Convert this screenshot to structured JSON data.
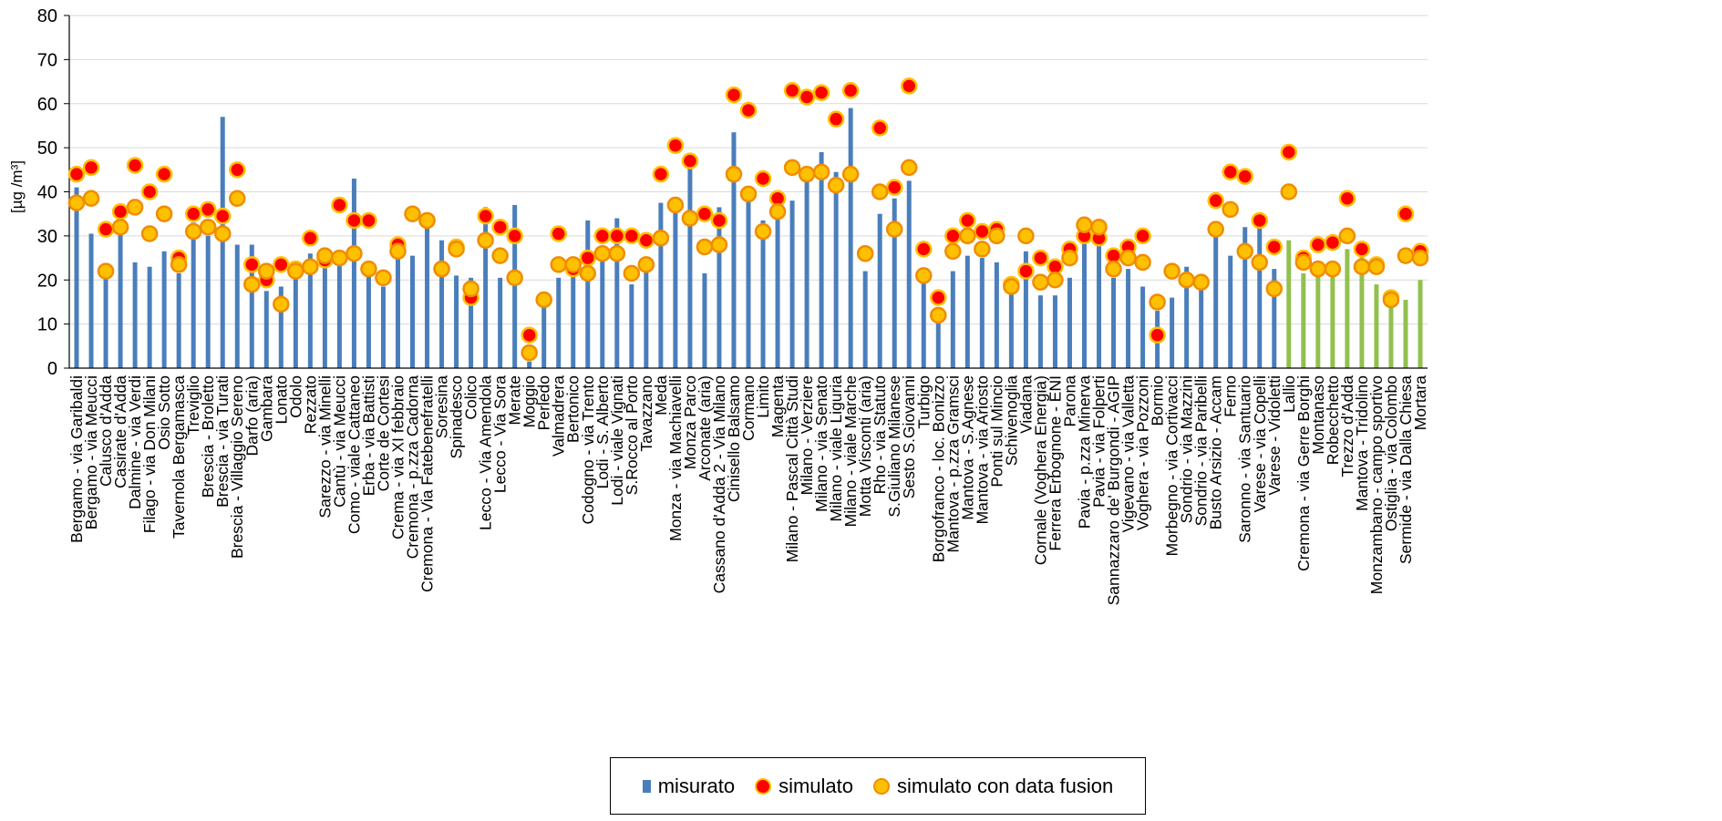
{
  "chart_data": {
    "type": "bar",
    "ylabel": "[µg /m³]",
    "ylim": [
      0,
      80
    ],
    "yticks": [
      0,
      10,
      20,
      30,
      40,
      50,
      60,
      70,
      80
    ],
    "grid": true,
    "legend_position": "bottom",
    "colors": {
      "bar_default": "#4a7ebb",
      "bar_highlight": "#92c050",
      "simulato_fill": "#ff0000",
      "simulato_stroke": "#ffc000",
      "data_fusion_fill": "#ffc000",
      "data_fusion_stroke": "#f08c00",
      "grid": "#d9d9d9"
    },
    "legend": [
      {
        "key": "misurato",
        "label": "misurato"
      },
      {
        "key": "simulato",
        "label": "simulato"
      },
      {
        "key": "data_fusion",
        "label": "simulato con data fusion"
      }
    ],
    "categories": [
      "Bergamo - via Garibaldi",
      "Bergamo - via Meucci",
      "Calusco d'Adda",
      "Casirate d'Adda",
      "Dalmine - via Verdi",
      "Filago - via Don Milani",
      "Osio Sotto",
      "Tavernola Bergamasca",
      "Treviglio",
      "Brescia - Broletto",
      "Brescia - via Turati",
      "Brescia - Villaggio Sereno",
      "Darfo (aria)",
      "Gambara",
      "Lonato",
      "Odolo",
      "Rezzato",
      "Sarezzo - via Minelli",
      "Cantù - via Meucci",
      "Como - viale Cattaneo",
      "Erba - via Battisti",
      "Corte de Cortesi",
      "Crema - via XI febbraio",
      "Cremona - p.zza Cadorna",
      "Cremona - Via Fatebenefratelli",
      "Soresina",
      "Spinadesco",
      "Colico",
      "Lecco - Via Amendola",
      "Lecco - Via Sora",
      "Merate",
      "Moggio",
      "Perledo",
      "Valmadrera",
      "Bertonico",
      "Codogno - via Trento",
      "Lodi - S. Alberto",
      "Lodi - viale Vignati",
      "S.Rocco al Porto",
      "Tavazzano",
      "Meda",
      "Monza - via Machiavelli",
      "Monza Parco",
      "Arconate (aria)",
      "Cassano d'Adda 2 - Via Milano",
      "Cinisello Balsamo",
      "Cormano",
      "Limito",
      "Magenta",
      "Milano - Pascal Città Studi",
      "Milano - Verziere",
      "Milano - via Senato",
      "Milano - viale Liguria",
      "Milano - viale Marche",
      "Motta Visconti (aria)",
      "Rho - via Statuto",
      "S.Giuliano Milanese",
      "Sesto S.Giovanni",
      "Turbigo",
      "Borgofranco - loc. Bonizzo",
      "Mantova - p.zza Gramsci",
      "Mantova - S.Agnese",
      "Mantova - via Ariosto",
      "Ponti sul Mincio",
      "Schivenoglia",
      "Viadana",
      "Cornale (Voghera Energia)",
      "Ferrera Erbognone - ENI",
      "Parona",
      "Pavia - p.zza Minerva",
      "Pavia - via Folperti",
      "Sannazzaro de' Burgondi - AGIP",
      "Vigevano - via Valletta",
      "Voghera - via Pozzoni",
      "Bormio",
      "Morbegno - via Cortivacci",
      "Sondrio - via Mazzini",
      "Sondrio - via Paribelli",
      "Busto Arsizio - Accam",
      "Ferno",
      "Saronno - via Santuario",
      "Varese - via Copelli",
      "Varese - Vidoletti",
      "Lallio",
      "Cremona - via Gerre Borghi",
      "Montanaso",
      "Robecchetto",
      "Trezzo d'Adda",
      "Mantova - Tridolino",
      "Monzambano - campo sportivo",
      "Ostiglia - via Colombo",
      "Sermide - via Dalla Chiesa",
      "Mortara"
    ],
    "series": [
      {
        "name": "misurato",
        "values": [
          41,
          30.5,
          21,
          31,
          24,
          23,
          26.5,
          21.5,
          33,
          30,
          57,
          28,
          28,
          17.5,
          18.5,
          22,
          26,
          26,
          26,
          43,
          21,
          18.5,
          27,
          25.5,
          32,
          29,
          21,
          20.5,
          36.5,
          20.5,
          37,
          1.5,
          14,
          20.5,
          24,
          33.5,
          24.5,
          34,
          19,
          22.5,
          37.5,
          35.5,
          46.5,
          21.5,
          36.5,
          53.5,
          39.5,
          33.5,
          35.5,
          38,
          45.5,
          49,
          44.5,
          59,
          22,
          35,
          38.5,
          42.5,
          20,
          10.5,
          22,
          25.5,
          25,
          24,
          17.5,
          26.5,
          16.5,
          16.5,
          20.5,
          30,
          28.5,
          20.5,
          22.5,
          18.5,
          13,
          16,
          23,
          19.5,
          31,
          25.5,
          32,
          34,
          22.5,
          29,
          21.5,
          21.5,
          21.5,
          27,
          25.5,
          19,
          15,
          15.5,
          20
        ]
      },
      {
        "name": "simulato",
        "values": [
          44,
          45.5,
          31.5,
          35.5,
          46,
          40,
          44,
          25,
          35,
          36,
          34.5,
          45,
          23.5,
          20,
          23.5,
          22.5,
          29.5,
          24.5,
          37,
          33.5,
          33.5,
          20.5,
          28,
          null,
          33.5,
          22.5,
          27.5,
          16,
          34.5,
          32,
          30,
          7.5,
          null,
          30.5,
          22.5,
          25,
          30,
          30,
          30,
          29,
          44,
          50.5,
          47,
          35,
          33.5,
          62,
          58.5,
          43,
          38.5,
          63,
          61.5,
          62.5,
          56.5,
          63,
          26,
          54.5,
          41,
          64,
          27,
          16,
          30,
          33.5,
          31,
          31.5,
          19,
          22,
          25,
          23,
          27,
          30,
          29.5,
          25.5,
          27.5,
          30,
          7.5,
          null,
          null,
          null,
          38,
          44.5,
          43.5,
          33.5,
          27.5,
          49,
          25,
          28,
          28.5,
          38.5,
          27,
          23.5,
          16,
          35,
          26.5
        ]
      },
      {
        "name": "simulato con data fusion",
        "values": [
          37.5,
          38.5,
          22,
          32,
          36.5,
          30.5,
          35,
          23.5,
          31,
          32,
          30.5,
          38.5,
          19,
          22,
          14.5,
          22,
          23,
          25.5,
          25,
          26,
          22.5,
          20.5,
          26.5,
          35,
          33.5,
          22.5,
          27,
          18,
          29,
          25.5,
          20.5,
          3.5,
          15.5,
          23.5,
          23.5,
          21.5,
          26,
          26,
          21.5,
          23.5,
          29.5,
          37,
          34,
          27.5,
          28,
          44,
          39.5,
          31,
          35.5,
          45.5,
          44,
          44.5,
          41.5,
          44,
          26,
          40,
          31.5,
          45.5,
          21,
          12,
          26.5,
          30,
          27,
          30,
          18.5,
          30,
          19.5,
          20,
          25,
          32.5,
          32,
          22.5,
          25,
          24,
          15,
          22,
          20,
          19.5,
          31.5,
          36,
          26.5,
          24,
          18,
          40,
          24,
          22.5,
          22.5,
          30,
          23,
          23,
          15.5,
          25.5,
          25
        ]
      }
    ],
    "highlighted_bar_indices": [
      83,
      84,
      85,
      86,
      87,
      88,
      89,
      90,
      91,
      92
    ]
  }
}
